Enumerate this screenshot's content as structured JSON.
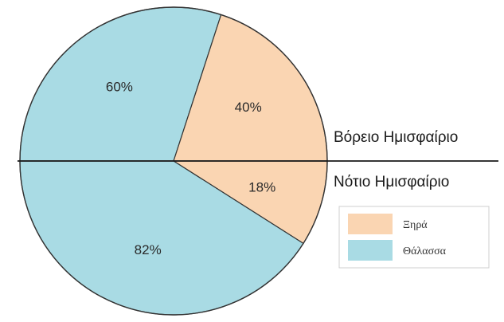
{
  "chart_data": {
    "type": "pie",
    "title": "",
    "halves": [
      {
        "name": "Βόρειο Ημισφαίριο",
        "position": "top",
        "slices": [
          {
            "category": "Θάλασσα",
            "value": 60,
            "label": "60%"
          },
          {
            "category": "Ξηρά",
            "value": 40,
            "label": "40%"
          }
        ]
      },
      {
        "name": "Νότιο Ημισφαίριο",
        "position": "bottom",
        "slices": [
          {
            "category": "Ξηρά",
            "value": 18,
            "label": "18%"
          },
          {
            "category": "Θάλασσα",
            "value": 82,
            "label": "82%"
          }
        ]
      }
    ],
    "legend": {
      "placement": "bottom-right",
      "entries": [
        {
          "name": "Ξηρά",
          "color": "#fad5b2"
        },
        {
          "name": "Θάλασσα",
          "color": "#a9dbe4"
        }
      ]
    }
  },
  "colors": {
    "land": "#fad5b2",
    "sea": "#a9dbe4",
    "outline": "#333333"
  }
}
